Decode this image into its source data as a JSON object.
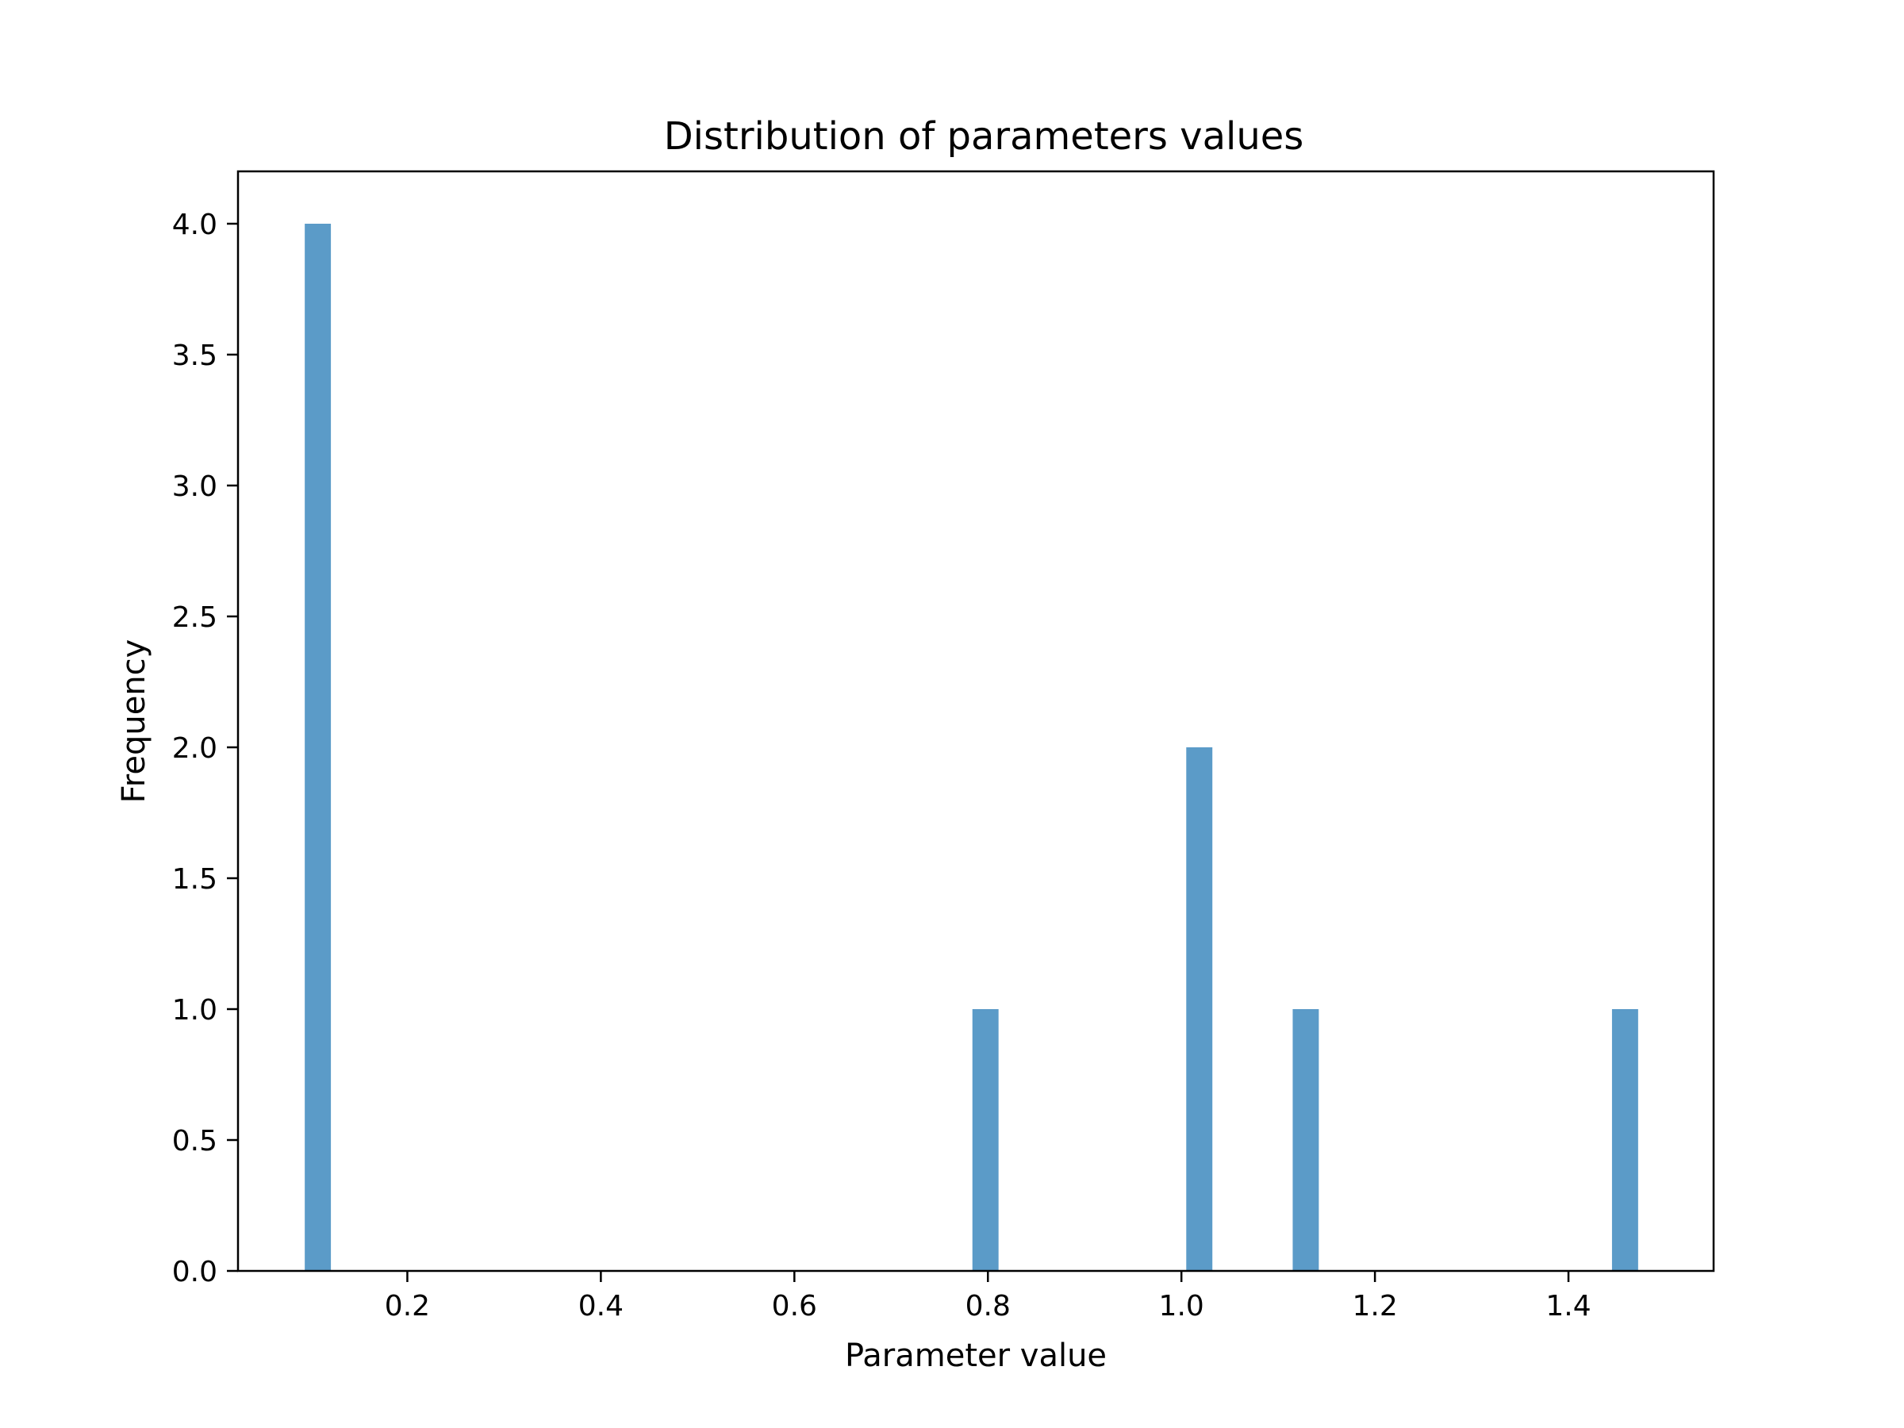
{
  "chart_data": {
    "type": "bar",
    "title": "Distribution of parameters values",
    "xlabel": "Parameter value",
    "ylabel": "Frequency",
    "xlim": [
      0.025,
      1.55
    ],
    "ylim": [
      0,
      4.2
    ],
    "x_ticks": [
      0.2,
      0.4,
      0.6,
      0.8,
      1.0,
      1.2,
      1.4
    ],
    "x_tick_labels": [
      "0.2",
      "0.4",
      "0.6",
      "0.8",
      "1.0",
      "1.2",
      "1.4"
    ],
    "y_ticks": [
      0.0,
      0.5,
      1.0,
      1.5,
      2.0,
      2.5,
      3.0,
      3.5,
      4.0
    ],
    "y_tick_labels": [
      "0.0",
      "0.5",
      "1.0",
      "1.5",
      "2.0",
      "2.5",
      "3.0",
      "3.5",
      "4.0"
    ],
    "grid": false,
    "bins": [
      {
        "x0": 0.094,
        "x1": 0.121,
        "count": 4
      },
      {
        "x0": 0.784,
        "x1": 0.811,
        "count": 1
      },
      {
        "x0": 1.005,
        "x1": 1.032,
        "count": 2
      },
      {
        "x0": 1.115,
        "x1": 1.142,
        "count": 1
      },
      {
        "x0": 1.445,
        "x1": 1.472,
        "count": 1
      }
    ],
    "bar_color": "#5b9bc8"
  }
}
